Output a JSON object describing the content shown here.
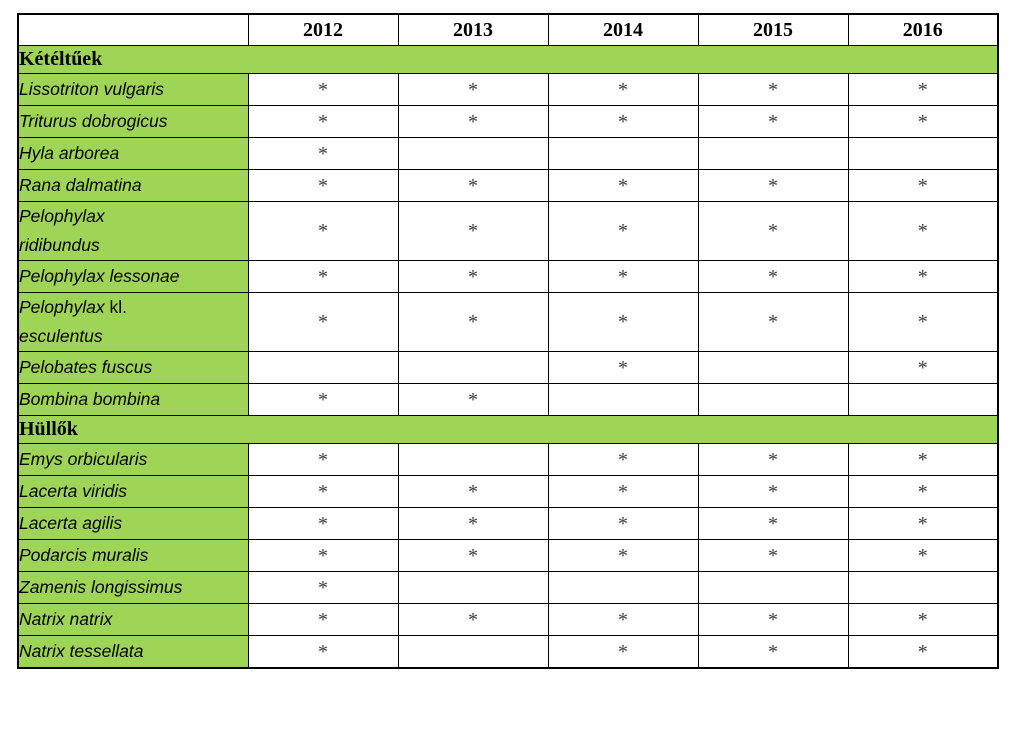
{
  "table": {
    "corner_label": "",
    "year_headers": [
      "2012",
      "2013",
      "2014",
      "2015",
      "2016"
    ],
    "presence_mark": "*",
    "colors": {
      "section_green": "#9fd557",
      "border_black": "#000000",
      "mark_gray": "#3b3b41",
      "page_background": "#ffffff"
    },
    "sections": [
      {
        "label": "Kétéltűek",
        "rows": [
          {
            "name": "Lissotriton vulgaris",
            "segments": [
              {
                "text": "Lissotriton vulgaris",
                "style": "italic"
              }
            ],
            "marks": [
              "*",
              "*",
              "*",
              "*",
              "*"
            ]
          },
          {
            "name": "Triturus dobrogicus",
            "segments": [
              {
                "text": "Triturus dobrogicus",
                "style": "italic"
              }
            ],
            "marks": [
              "*",
              "*",
              "*",
              "*",
              "*"
            ]
          },
          {
            "name": "Hyla arborea",
            "segments": [
              {
                "text": "Hyla arborea",
                "style": "italic"
              }
            ],
            "marks": [
              "*",
              "",
              "",
              "",
              ""
            ]
          },
          {
            "name": "Rana dalmatina",
            "segments": [
              {
                "text": "Rana dalmatina",
                "style": "italic"
              }
            ],
            "marks": [
              "*",
              "*",
              "*",
              "*",
              "*"
            ]
          },
          {
            "name": "Pelophylax ridibundus",
            "segments": [
              {
                "text": "Pelophylax",
                "style": "italic"
              },
              {
                "text": "ridibundus",
                "style": "italic",
                "newline": true
              }
            ],
            "marks": [
              "*",
              "*",
              "*",
              "*",
              "*"
            ]
          },
          {
            "name": "Pelophylax lessonae",
            "segments": [
              {
                "text": "Pelophylax lessonae",
                "style": "italic"
              }
            ],
            "marks": [
              "*",
              "*",
              "*",
              "*",
              "*"
            ]
          },
          {
            "name": "Pelophylax kl. esculentus",
            "segments": [
              {
                "text": "Pelophylax ",
                "style": "italic"
              },
              {
                "text": "kl.",
                "style": "normal"
              },
              {
                "text": "esculentus",
                "style": "italic",
                "newline": true
              }
            ],
            "marks": [
              "*",
              "*",
              "*",
              "*",
              "*"
            ]
          },
          {
            "name": "Pelobates fuscus",
            "segments": [
              {
                "text": "Pelobates fuscus",
                "style": "italic"
              }
            ],
            "marks": [
              "",
              "",
              "*",
              "",
              "*"
            ]
          },
          {
            "name": "Bombina bombina",
            "segments": [
              {
                "text": "Bombina bombina",
                "style": "italic"
              }
            ],
            "marks": [
              "*",
              "*",
              "",
              "",
              ""
            ]
          }
        ]
      },
      {
        "label": "Hüllők",
        "rows": [
          {
            "name": "Emys orbicularis",
            "segments": [
              {
                "text": "Emys orbicularis",
                "style": "italic"
              }
            ],
            "marks": [
              "*",
              "",
              "*",
              "*",
              "*"
            ]
          },
          {
            "name": "Lacerta viridis",
            "segments": [
              {
                "text": "Lacerta viridis",
                "style": "italic"
              }
            ],
            "marks": [
              "*",
              "*",
              "*",
              "*",
              "*"
            ]
          },
          {
            "name": "Lacerta agilis",
            "segments": [
              {
                "text": "Lacerta agilis",
                "style": "italic"
              }
            ],
            "marks": [
              "*",
              "*",
              "*",
              "*",
              "*"
            ]
          },
          {
            "name": "Podarcis muralis",
            "segments": [
              {
                "text": "Podarcis muralis",
                "style": "italic"
              }
            ],
            "marks": [
              "*",
              "*",
              "*",
              "*",
              "*"
            ]
          },
          {
            "name": "Zamenis longissimus",
            "segments": [
              {
                "text": "Zamenis longissimus",
                "style": "italic"
              }
            ],
            "marks": [
              "*",
              "",
              "",
              "",
              ""
            ]
          },
          {
            "name": "Natrix natrix",
            "segments": [
              {
                "text": "Natrix natrix",
                "style": "italic"
              }
            ],
            "marks": [
              "*",
              "*",
              "*",
              "*",
              "*"
            ]
          },
          {
            "name": "Natrix tessellata",
            "segments": [
              {
                "text": "Natrix tessellata",
                "style": "italic"
              }
            ],
            "marks": [
              "*",
              "",
              "*",
              "*",
              "*"
            ]
          }
        ]
      }
    ]
  }
}
